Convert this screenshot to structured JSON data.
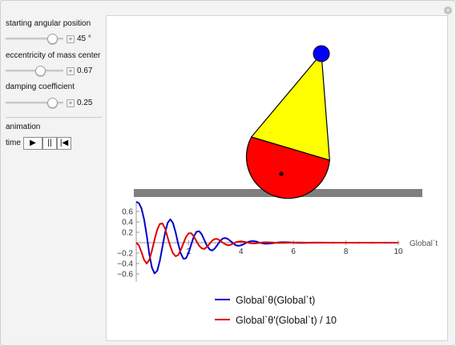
{
  "controls": {
    "angle": {
      "label": "starting angular position",
      "value": "45 °",
      "fraction": 0.88
    },
    "eccentricity": {
      "label": "eccentricity of mass center",
      "value": "0.67",
      "fraction": 0.63
    },
    "damping": {
      "label": "damping coefficient",
      "value": "0.25",
      "fraction": 0.88
    },
    "animation_label": "animation",
    "time_label": "time",
    "buttons": {
      "play": "▶",
      "pause": "||",
      "reset": "|◀"
    }
  },
  "legend": {
    "theta": "Global`θ(Global`t)",
    "theta_dot": "Global`θ′(Global`t) / 10"
  },
  "colors": {
    "theta": "#0000cc",
    "theta_dot": "#dd0000",
    "cone": "#ffff00",
    "base": "#ff0000",
    "knob": "#0000ff",
    "floor": "#7f7f7f"
  },
  "chart_data": {
    "type": "line",
    "xlabel": "Global`t",
    "xlim": [
      0,
      10
    ],
    "ylim": [
      -0.75,
      0.8
    ],
    "xticks": [
      2,
      4,
      6,
      8,
      10
    ],
    "yticks": [
      0.6,
      0.4,
      0.2,
      -0.2,
      -0.4,
      -0.6
    ],
    "series": [
      {
        "name": "Global`θ(Global`t)",
        "x": [
          0,
          0.1,
          0.2,
          0.3,
          0.4,
          0.5,
          0.6,
          0.7,
          0.8,
          0.9,
          1.0,
          1.1,
          1.2,
          1.3,
          1.4,
          1.5,
          1.6,
          1.7,
          1.8,
          1.9,
          2.0,
          2.1,
          2.2,
          2.3,
          2.4,
          2.5,
          2.6,
          2.7,
          2.8,
          2.9,
          3.0,
          3.1,
          3.2,
          3.3,
          3.4,
          3.5,
          3.6,
          3.7,
          3.8,
          3.9,
          4.0,
          4.1,
          4.2,
          4.3,
          4.4,
          4.5,
          4.6,
          4.7,
          4.8,
          4.9,
          5.0,
          5.2,
          5.4,
          5.6,
          5.8,
          6.0,
          6.2,
          6.4,
          6.6,
          6.8,
          7.0,
          7.5,
          8.0,
          8.5,
          9.0,
          9.5,
          10.0
        ],
        "y": [
          0.785,
          0.76,
          0.66,
          0.45,
          0.14,
          -0.22,
          -0.48,
          -0.59,
          -0.54,
          -0.35,
          -0.08,
          0.19,
          0.38,
          0.45,
          0.38,
          0.2,
          -0.02,
          -0.21,
          -0.31,
          -0.3,
          -0.19,
          -0.03,
          0.12,
          0.21,
          0.22,
          0.16,
          0.05,
          -0.06,
          -0.13,
          -0.15,
          -0.11,
          -0.04,
          0.03,
          0.08,
          0.09,
          0.07,
          0.03,
          -0.01,
          -0.05,
          -0.06,
          -0.05,
          -0.03,
          0.0,
          0.02,
          0.03,
          0.03,
          0.02,
          0.0,
          -0.01,
          -0.02,
          -0.02,
          -0.01,
          0.005,
          0.01,
          0.008,
          0.0,
          -0.004,
          -0.003,
          0.0,
          0.002,
          0.001,
          0.0,
          0.0,
          0.0,
          0.0,
          0.0,
          0.0
        ]
      },
      {
        "name": "Global`θ′(Global`t) / 10",
        "x": [
          0,
          0.1,
          0.2,
          0.3,
          0.4,
          0.5,
          0.6,
          0.7,
          0.8,
          0.9,
          1.0,
          1.1,
          1.2,
          1.3,
          1.4,
          1.5,
          1.6,
          1.7,
          1.8,
          1.9,
          2.0,
          2.1,
          2.2,
          2.3,
          2.4,
          2.5,
          2.6,
          2.7,
          2.8,
          2.9,
          3.0,
          3.1,
          3.2,
          3.3,
          3.4,
          3.5,
          3.6,
          3.7,
          3.8,
          3.9,
          4.0,
          4.1,
          4.2,
          4.3,
          4.4,
          4.5,
          4.6,
          4.7,
          4.8,
          4.9,
          5.0,
          5.2,
          5.4,
          5.6,
          5.8,
          6.0,
          6.2,
          6.4,
          6.6,
          6.8,
          7.0,
          7.5,
          8.0,
          8.5,
          9.0,
          9.5,
          10.0
        ],
        "y": [
          0.0,
          -0.05,
          -0.18,
          -0.33,
          -0.4,
          -0.33,
          -0.15,
          0.06,
          0.25,
          0.36,
          0.37,
          0.27,
          0.1,
          -0.07,
          -0.2,
          -0.26,
          -0.24,
          -0.14,
          -0.01,
          0.11,
          0.18,
          0.18,
          0.12,
          0.03,
          -0.06,
          -0.11,
          -0.12,
          -0.08,
          -0.02,
          0.04,
          0.07,
          0.07,
          0.04,
          0.0,
          -0.03,
          -0.05,
          -0.04,
          -0.02,
          0.01,
          0.02,
          0.025,
          0.02,
          0.01,
          -0.005,
          -0.012,
          -0.014,
          -0.01,
          -0.004,
          0.003,
          0.007,
          0.008,
          0.004,
          -0.003,
          -0.005,
          -0.002,
          0.002,
          0.003,
          0.001,
          -0.001,
          -0.001,
          0.0,
          0.0,
          0.0,
          0.0,
          0.0,
          0.0,
          0.0
        ]
      }
    ]
  }
}
